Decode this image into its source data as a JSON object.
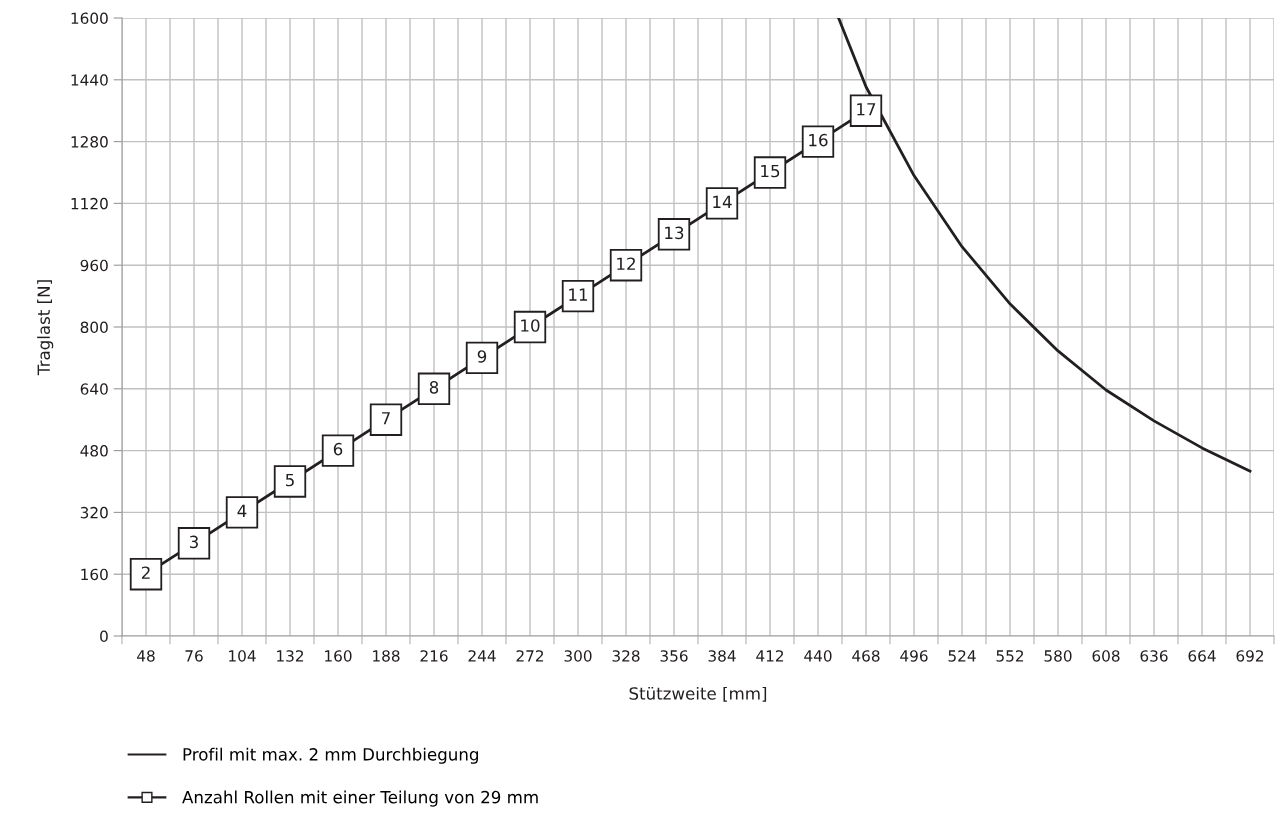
{
  "chart_data": {
    "type": "line",
    "xlabel": "Stützweite [mm]",
    "ylabel": "Traglast [N]",
    "xlim": [
      34,
      706
    ],
    "ylim": [
      0,
      1600
    ],
    "xticks": [
      {
        "value": 34,
        "label": null
      },
      48,
      {
        "value": 62,
        "label": null
      },
      76,
      {
        "value": 90,
        "label": null
      },
      104,
      {
        "value": 118,
        "label": null
      },
      132,
      {
        "value": 146,
        "label": null
      },
      160,
      {
        "value": 174,
        "label": null
      },
      188,
      {
        "value": 202,
        "label": null
      },
      216,
      {
        "value": 230,
        "label": null
      },
      244,
      {
        "value": 258,
        "label": null
      },
      272,
      {
        "value": 286,
        "label": null
      },
      300,
      {
        "value": 314,
        "label": null
      },
      328,
      {
        "value": 342,
        "label": null
      },
      356,
      {
        "value": 370,
        "label": null
      },
      384,
      {
        "value": 398,
        "label": null
      },
      412,
      {
        "value": 426,
        "label": null
      },
      440,
      {
        "value": 454,
        "label": null
      },
      468,
      {
        "value": 482,
        "label": null
      },
      496,
      {
        "value": 510,
        "label": null
      },
      524,
      {
        "value": 538,
        "label": null
      },
      552,
      {
        "value": 566,
        "label": null
      },
      580,
      {
        "value": 594,
        "label": null
      },
      608,
      {
        "value": 622,
        "label": null
      },
      636,
      {
        "value": 650,
        "label": null
      },
      664,
      {
        "value": 678,
        "label": null
      },
      692,
      {
        "value": 706,
        "label": null
      }
    ],
    "yticks": [
      0,
      160,
      320,
      480,
      640,
      800,
      960,
      1120,
      1280,
      1440,
      1600
    ],
    "grid": true,
    "legend": "bottom",
    "annotations": [
      {
        "text": "2",
        "x": 48,
        "y": 160
      },
      {
        "text": "3",
        "x": 76,
        "y": 240
      },
      {
        "text": "4",
        "x": 104,
        "y": 320
      },
      {
        "text": "5",
        "x": 132,
        "y": 400
      },
      {
        "text": "6",
        "x": 160,
        "y": 480
      },
      {
        "text": "7",
        "x": 188,
        "y": 560
      },
      {
        "text": "8",
        "x": 216,
        "y": 640
      },
      {
        "text": "9",
        "x": 244,
        "y": 720
      },
      {
        "text": "10",
        "x": 272,
        "y": 800
      },
      {
        "text": "11",
        "x": 300,
        "y": 880
      },
      {
        "text": "12",
        "x": 328,
        "y": 960
      },
      {
        "text": "13",
        "x": 356,
        "y": 1040
      },
      {
        "text": "14",
        "x": 384,
        "y": 1120
      },
      {
        "text": "15",
        "x": 412,
        "y": 1200
      },
      {
        "text": "16",
        "x": 440,
        "y": 1280
      },
      {
        "text": "17",
        "x": 468,
        "y": 1360
      }
    ],
    "series": [
      {
        "name": "Profil mit max. 2 mm Durchbiegung",
        "color": "#231f20",
        "marker": "none",
        "x": [
          452,
          468,
          496,
          524,
          552,
          580,
          608,
          636,
          664,
          692
        ],
        "values": [
          1600,
          1422,
          1192,
          1008,
          860,
          738,
          637,
          557,
          487,
          427
        ]
      },
      {
        "name": "Anzahl Rollen mit einer Teilung von 29 mm",
        "color": "#231f20",
        "marker": "square",
        "x": [
          48,
          76,
          104,
          132,
          160,
          188,
          216,
          244,
          272,
          300,
          328,
          356,
          384,
          412,
          440,
          468
        ],
        "values": [
          160,
          240,
          320,
          400,
          480,
          560,
          640,
          720,
          800,
          880,
          960,
          1040,
          1120,
          1200,
          1280,
          1360
        ]
      }
    ]
  }
}
